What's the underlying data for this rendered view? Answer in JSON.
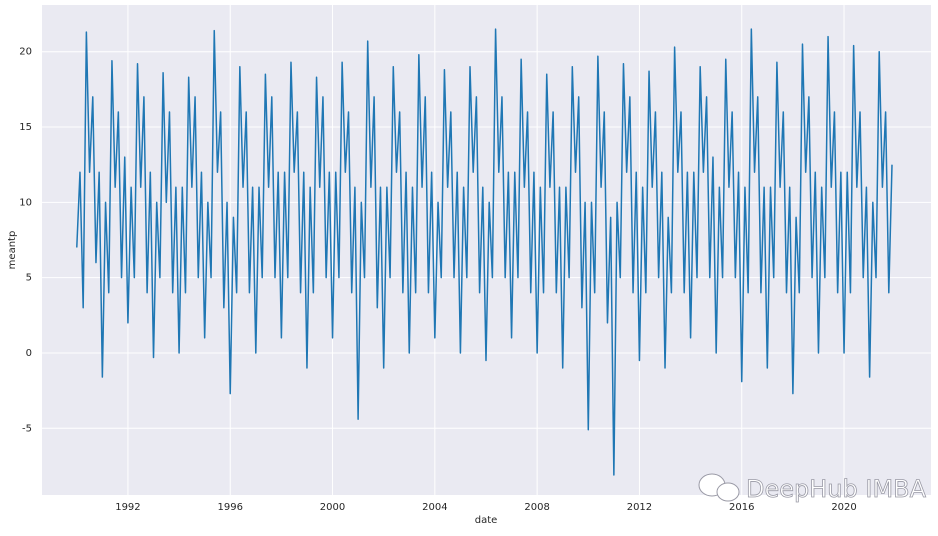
{
  "chart_data": {
    "type": "line",
    "xlabel": "date",
    "ylabel": "meantp",
    "watermark": "DeepHub IMBA",
    "color": "#1f77b4",
    "grid": true,
    "xlim": [
      1988.64,
      2023.4
    ],
    "ylim": [
      -9.43,
      23.1
    ],
    "xticks": [
      1992,
      1996,
      2000,
      2004,
      2008,
      2012,
      2016,
      2020
    ],
    "yticks": [
      -5,
      0,
      5,
      10,
      15,
      20
    ],
    "x": [
      1990,
      1990.125,
      1990.25,
      1990.375,
      1990.5,
      1990.625,
      1990.75,
      1990.875,
      1991,
      1991.125,
      1991.25,
      1991.375,
      1991.5,
      1991.625,
      1991.75,
      1991.875,
      1992,
      1992.125,
      1992.25,
      1992.375,
      1992.5,
      1992.625,
      1992.75,
      1992.875,
      1993,
      1993.125,
      1993.25,
      1993.375,
      1993.5,
      1993.625,
      1993.75,
      1993.875,
      1994,
      1994.125,
      1994.25,
      1994.375,
      1994.5,
      1994.625,
      1994.75,
      1994.875,
      1995,
      1995.125,
      1995.25,
      1995.375,
      1995.5,
      1995.625,
      1995.75,
      1995.875,
      1996,
      1996.125,
      1996.25,
      1996.375,
      1996.5,
      1996.625,
      1996.75,
      1996.875,
      1997,
      1997.125,
      1997.25,
      1997.375,
      1997.5,
      1997.625,
      1997.75,
      1997.875,
      1998,
      1998.125,
      1998.25,
      1998.375,
      1998.5,
      1998.625,
      1998.75,
      1998.875,
      1999,
      1999.125,
      1999.25,
      1999.375,
      1999.5,
      1999.625,
      1999.75,
      1999.875,
      2000,
      2000.125,
      2000.25,
      2000.375,
      2000.5,
      2000.625,
      2000.75,
      2000.875,
      2001,
      2001.125,
      2001.25,
      2001.375,
      2001.5,
      2001.625,
      2001.75,
      2001.875,
      2002,
      2002.125,
      2002.25,
      2002.375,
      2002.5,
      2002.625,
      2002.75,
      2002.875,
      2003,
      2003.125,
      2003.25,
      2003.375,
      2003.5,
      2003.625,
      2003.75,
      2003.875,
      2004,
      2004.125,
      2004.25,
      2004.375,
      2004.5,
      2004.625,
      2004.75,
      2004.875,
      2005,
      2005.125,
      2005.25,
      2005.375,
      2005.5,
      2005.625,
      2005.75,
      2005.875,
      2006,
      2006.125,
      2006.25,
      2006.375,
      2006.5,
      2006.625,
      2006.75,
      2006.875,
      2007,
      2007.125,
      2007.25,
      2007.375,
      2007.5,
      2007.625,
      2007.75,
      2007.875,
      2008,
      2008.125,
      2008.25,
      2008.375,
      2008.5,
      2008.625,
      2008.75,
      2008.875,
      2009,
      2009.125,
      2009.25,
      2009.375,
      2009.5,
      2009.625,
      2009.75,
      2009.875,
      2010,
      2010.125,
      2010.25,
      2010.375,
      2010.5,
      2010.625,
      2010.75,
      2010.875,
      2011,
      2011.125,
      2011.25,
      2011.375,
      2011.5,
      2011.625,
      2011.75,
      2011.875,
      2012,
      2012.125,
      2012.25,
      2012.375,
      2012.5,
      2012.625,
      2012.75,
      2012.875,
      2013,
      2013.125,
      2013.25,
      2013.375,
      2013.5,
      2013.625,
      2013.75,
      2013.875,
      2014,
      2014.125,
      2014.25,
      2014.375,
      2014.5,
      2014.625,
      2014.75,
      2014.875,
      2015,
      2015.125,
      2015.25,
      2015.375,
      2015.5,
      2015.625,
      2015.75,
      2015.875,
      2016,
      2016.125,
      2016.25,
      2016.375,
      2016.5,
      2016.625,
      2016.75,
      2016.875,
      2017,
      2017.125,
      2017.25,
      2017.375,
      2017.5,
      2017.625,
      2017.75,
      2017.875,
      2018,
      2018.125,
      2018.25,
      2018.375,
      2018.5,
      2018.625,
      2018.75,
      2018.875,
      2019,
      2019.125,
      2019.25,
      2019.375,
      2019.5,
      2019.625,
      2019.75,
      2019.875,
      2020,
      2020.125,
      2020.25,
      2020.375,
      2020.5,
      2020.625,
      2020.75,
      2020.875,
      2021,
      2021.125,
      2021.25,
      2021.375,
      2021.5,
      2021.625,
      2021.75,
      2021.875
    ],
    "values": [
      7,
      12,
      3,
      21.3,
      12,
      17,
      6,
      12,
      -1.6,
      10,
      4,
      19.4,
      11,
      16,
      5,
      13,
      2,
      11,
      5,
      19.2,
      11,
      17,
      4,
      12,
      -0.3,
      10,
      5,
      18.6,
      10,
      16,
      4,
      11,
      0,
      11,
      4,
      18.3,
      11,
      17,
      5,
      12,
      1,
      10,
      5,
      21.4,
      12,
      16,
      3,
      10,
      -2.7,
      9,
      4,
      19,
      11,
      16,
      4,
      11,
      0,
      11,
      5,
      18.5,
      11,
      17,
      5,
      12,
      1,
      12,
      5,
      19.3,
      12,
      16,
      4,
      12,
      -1,
      11,
      4,
      18.3,
      11,
      17,
      5,
      12,
      1,
      12,
      5,
      19.3,
      12,
      16,
      4,
      11,
      -4.4,
      10,
      5,
      20.7,
      11,
      17,
      3,
      11,
      -1,
      11,
      5,
      19,
      12,
      16,
      4,
      12,
      0,
      11,
      4,
      19.8,
      11,
      17,
      4,
      12,
      1,
      10,
      5,
      18.8,
      11,
      16,
      5,
      12,
      0,
      11,
      5,
      19,
      12,
      17,
      4,
      11,
      -0.5,
      10,
      5,
      21.5,
      12,
      17,
      5,
      12,
      1,
      12,
      5,
      19.5,
      11,
      16,
      4,
      12,
      0,
      11,
      4,
      18.5,
      11,
      16,
      4,
      11,
      -1,
      11,
      5,
      19,
      12,
      17,
      3,
      10,
      -5.1,
      10,
      4,
      19.7,
      11,
      16,
      2,
      9,
      -8.1,
      10,
      5,
      19.2,
      12,
      17,
      4,
      12,
      -0.5,
      11,
      4,
      18.7,
      11,
      16,
      5,
      12,
      -1,
      9,
      4,
      20.3,
      12,
      16,
      4,
      12,
      1,
      12,
      5,
      19,
      12,
      17,
      5,
      13,
      0,
      11,
      5,
      19.5,
      11,
      16,
      5,
      12,
      -1.9,
      11,
      4,
      21.5,
      12,
      17,
      4,
      11,
      -1,
      11,
      5,
      19.3,
      11,
      16,
      4,
      11,
      -2.7,
      9,
      4,
      20.5,
      12,
      17,
      5,
      12,
      0,
      11,
      5,
      21,
      11,
      16,
      4,
      12,
      0,
      12,
      4,
      20.4,
      11,
      16,
      5,
      11,
      -1.6,
      10,
      5,
      20,
      11,
      16,
      4,
      12.5
    ]
  }
}
